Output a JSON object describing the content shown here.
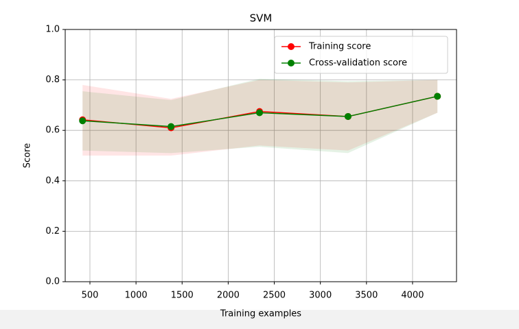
{
  "chart_data": {
    "type": "line",
    "title": "SVM",
    "x_label": "Training examples",
    "y_label": "Score",
    "x": [
      420,
      1380,
      2340,
      3300,
      4270
    ],
    "series": [
      {
        "name": "Training score",
        "color": "#ff0000",
        "values": [
          0.642,
          0.61,
          0.675,
          0.655,
          0.735
        ],
        "band_upper": [
          0.78,
          0.725,
          0.8,
          0.79,
          0.8
        ],
        "band_lower": [
          0.5,
          0.5,
          0.54,
          0.52,
          0.67
        ]
      },
      {
        "name": "Cross-validation score",
        "color": "#008000",
        "values": [
          0.638,
          0.615,
          0.67,
          0.655,
          0.735
        ],
        "band_upper": [
          0.755,
          0.72,
          0.805,
          0.795,
          0.8
        ],
        "band_lower": [
          0.52,
          0.51,
          0.535,
          0.51,
          0.67
        ]
      }
    ],
    "xlim": [
      232,
      4477
    ],
    "ylim": [
      0,
      1
    ],
    "xticks": [
      500,
      1000,
      1500,
      2000,
      2500,
      3000,
      3500,
      4000
    ],
    "yticks": [
      {
        "value": 0,
        "label": "0.0"
      },
      0.2,
      0.4,
      0.6,
      0.8,
      {
        "value": 1,
        "label": "1.0"
      }
    ],
    "grid": true,
    "legend": "upper right"
  }
}
